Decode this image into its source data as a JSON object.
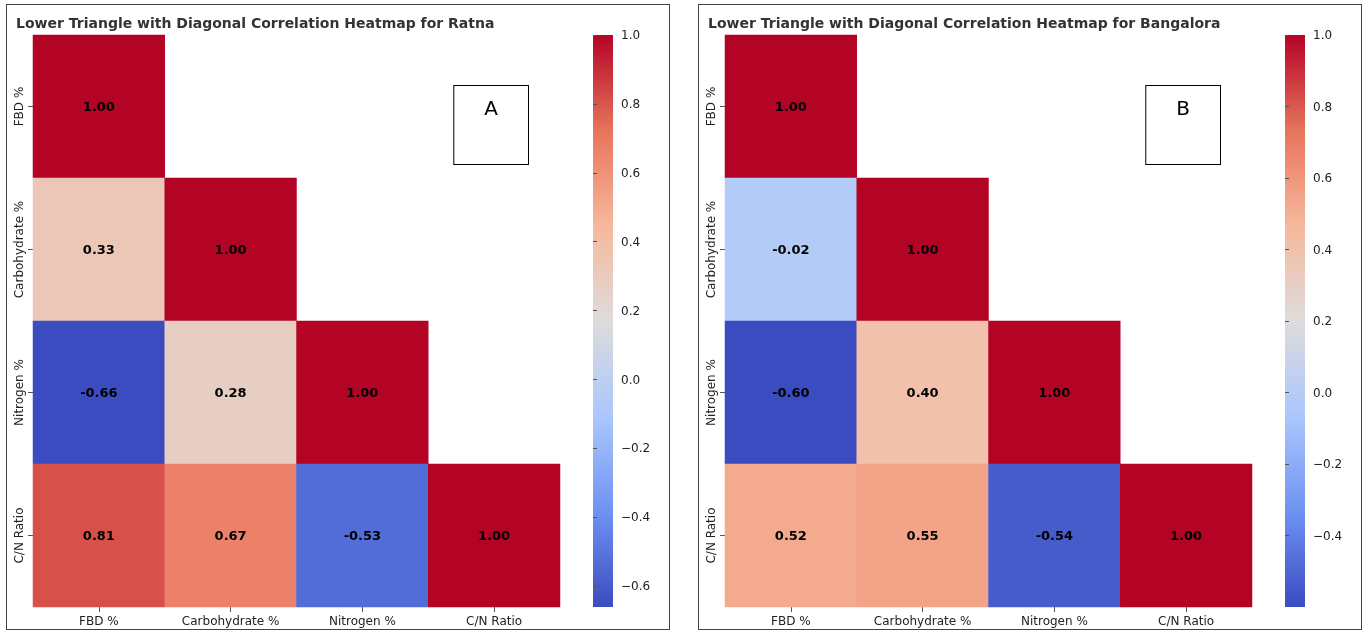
{
  "chart_data": [
    {
      "type": "heatmap",
      "title": "Lower Triangle with Diagonal Correlation Heatmap for Ratna",
      "categories": [
        "FBD %",
        "Carbohydrate %",
        "Nitrogen %",
        "C/N Ratio"
      ],
      "y_categories": [
        "FBD %",
        "Carbohydrate %",
        "Nitrogen %",
        "C/N Ratio"
      ],
      "cells": [
        [
          1,
          null,
          null,
          null
        ],
        [
          0.33,
          1,
          null,
          null
        ],
        [
          -0.66,
          0.28,
          1,
          null
        ],
        [
          0.81,
          0.67,
          -0.53,
          1
        ]
      ],
      "cell_labels": [
        [
          "1.00",
          null,
          null,
          null
        ],
        [
          "0.33",
          "1.00",
          null,
          null
        ],
        [
          "-0.66",
          "0.28",
          "1.00",
          null
        ],
        [
          "0.81",
          "0.67",
          "-0.53",
          "1.00"
        ]
      ],
      "clim": [
        -0.66,
        1
      ],
      "cticks": [
        {
          "value": -0.6,
          "label": "−0.6"
        },
        {
          "value": -0.4,
          "label": "−0.4"
        },
        {
          "value": -0.2,
          "label": "−0.2"
        },
        {
          "value": 0,
          "label": "0.0"
        },
        {
          "value": 0.2,
          "label": "0.2"
        },
        {
          "value": 0.4,
          "label": "0.4"
        },
        {
          "value": 0.6,
          "label": "0.6"
        },
        {
          "value": 0.8,
          "label": "0.8"
        },
        {
          "value": 1,
          "label": "1.0"
        }
      ],
      "annotations": [
        "A"
      ]
    },
    {
      "type": "heatmap",
      "title": "Lower Triangle with Diagonal Correlation Heatmap for Bangalora",
      "categories": [
        "FBD %",
        "Carbohydrate %",
        "Nitrogen %",
        "C/N Ratio"
      ],
      "y_categories": [
        "FBD %",
        "Carbohydrate %",
        "Nitrogen %",
        "C/N Ratio"
      ],
      "cells": [
        [
          1,
          null,
          null,
          null
        ],
        [
          -0.02,
          1,
          null,
          null
        ],
        [
          -0.6,
          0.4,
          1,
          null
        ],
        [
          0.52,
          0.55,
          -0.54,
          1
        ]
      ],
      "cell_labels": [
        [
          "1.00",
          null,
          null,
          null
        ],
        [
          "-0.02",
          "1.00",
          null,
          null
        ],
        [
          "-0.60",
          "0.40",
          "1.00",
          null
        ],
        [
          "0.52",
          "0.55",
          "-0.54",
          "1.00"
        ]
      ],
      "clim": [
        -0.6,
        1
      ],
      "cticks": [
        {
          "value": -0.4,
          "label": "−0.4"
        },
        {
          "value": -0.2,
          "label": "−0.2"
        },
        {
          "value": 0,
          "label": "0.0"
        },
        {
          "value": 0.2,
          "label": "0.2"
        },
        {
          "value": 0.4,
          "label": "0.4"
        },
        {
          "value": 0.6,
          "label": "0.6"
        },
        {
          "value": 0.8,
          "label": "0.8"
        },
        {
          "value": 1,
          "label": "1.0"
        }
      ],
      "annotations": [
        "B"
      ]
    }
  ]
}
